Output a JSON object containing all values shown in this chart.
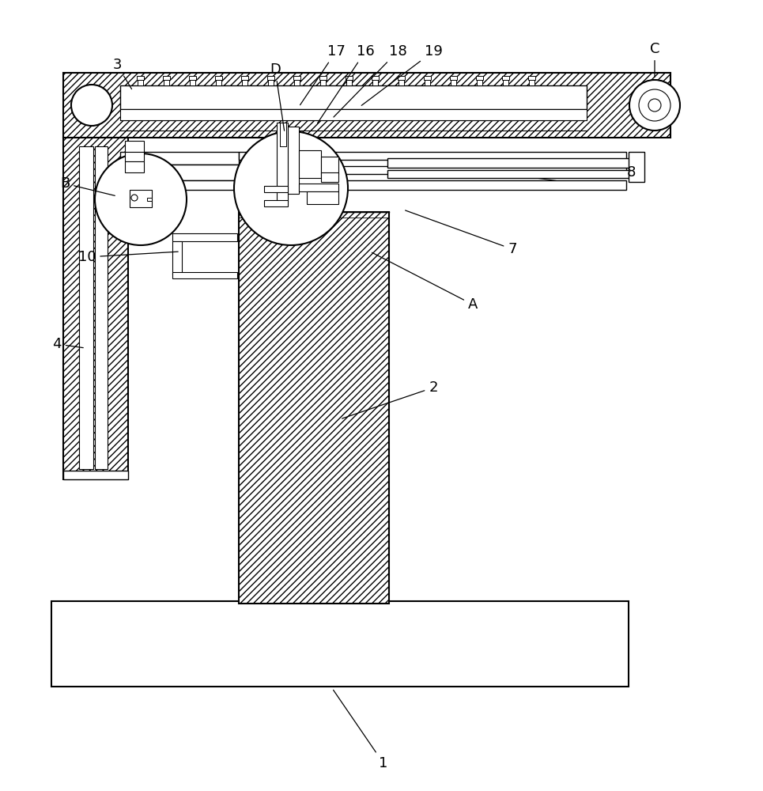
{
  "bg_color": "#ffffff",
  "lc": "#000000",
  "lw": 1.2,
  "fig_w": 9.65,
  "fig_h": 10.0,
  "dpi": 100,
  "annotations": [
    [
      "3",
      148,
      82,
      168,
      115
    ],
    [
      "D",
      348,
      88,
      360,
      168
    ],
    [
      "17",
      425,
      65,
      378,
      135
    ],
    [
      "16",
      462,
      65,
      400,
      158
    ],
    [
      "18",
      503,
      65,
      420,
      150
    ],
    [
      "19",
      548,
      65,
      455,
      135
    ],
    [
      "C",
      828,
      62,
      828,
      100
    ],
    [
      "B",
      82,
      232,
      148,
      248
    ],
    [
      "10",
      110,
      325,
      228,
      318
    ],
    [
      "4",
      72,
      435,
      108,
      440
    ],
    [
      "2",
      548,
      490,
      430,
      530
    ],
    [
      "A",
      598,
      385,
      468,
      318
    ],
    [
      "7",
      648,
      315,
      510,
      265
    ],
    [
      "8",
      798,
      218,
      798,
      218
    ],
    [
      "1",
      485,
      965,
      420,
      870
    ]
  ]
}
